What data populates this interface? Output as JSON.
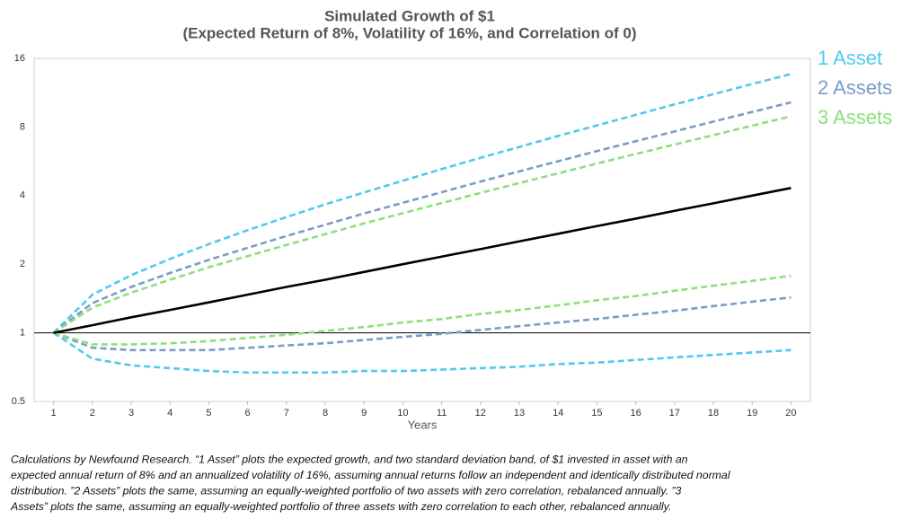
{
  "chart_data": {
    "type": "line",
    "title": [
      "Simulated Growth of $1",
      "(Expected Return of 8%, Volatility of 16%, and Correlation of 0)"
    ],
    "x_label": "Years",
    "x": [
      1,
      2,
      3,
      4,
      5,
      6,
      7,
      8,
      9,
      10,
      11,
      12,
      13,
      14,
      15,
      16,
      17,
      18,
      19,
      20
    ],
    "xlim": [
      0.5,
      20.5
    ],
    "ylim": [
      0.5,
      16
    ],
    "yticks": [
      0.5,
      1,
      2,
      4,
      8,
      16
    ],
    "log_scale": true,
    "grid": false,
    "reference_line": 1,
    "legend_position": "right",
    "median": {
      "color": "#000000",
      "values": [
        1,
        1.08,
        1.17,
        1.26,
        1.36,
        1.47,
        1.59,
        1.71,
        1.85,
        2.0,
        2.16,
        2.33,
        2.52,
        2.72,
        2.94,
        3.17,
        3.43,
        3.7,
        4.0,
        4.32
      ]
    },
    "series": [
      {
        "name": "1 Asset",
        "color": "#4fc9f0",
        "upper": [
          1,
          1.47,
          1.79,
          2.11,
          2.45,
          2.82,
          3.22,
          3.66,
          4.13,
          4.65,
          5.23,
          5.86,
          6.54,
          7.31,
          8.13,
          9.04,
          10.05,
          11.14,
          12.35,
          13.66
        ],
        "lower": [
          1,
          0.77,
          0.72,
          0.7,
          0.68,
          0.67,
          0.67,
          0.67,
          0.68,
          0.68,
          0.69,
          0.7,
          0.71,
          0.73,
          0.74,
          0.76,
          0.78,
          0.8,
          0.82,
          0.84
        ]
      },
      {
        "name": "2 Assets",
        "color": "#7b9cc4",
        "upper": [
          1,
          1.35,
          1.59,
          1.83,
          2.09,
          2.36,
          2.66,
          2.98,
          3.34,
          3.72,
          4.14,
          4.61,
          5.11,
          5.66,
          6.27,
          6.93,
          7.65,
          8.45,
          9.31,
          10.26
        ],
        "lower": [
          1,
          0.86,
          0.84,
          0.84,
          0.84,
          0.86,
          0.88,
          0.9,
          0.93,
          0.96,
          0.99,
          1.03,
          1.07,
          1.11,
          1.15,
          1.2,
          1.25,
          1.31,
          1.37,
          1.43
        ]
      },
      {
        "name": "3 Assets",
        "color": "#8de07a",
        "upper": [
          1,
          1.29,
          1.5,
          1.71,
          1.94,
          2.17,
          2.43,
          2.71,
          3.02,
          3.35,
          3.71,
          4.11,
          4.54,
          5.01,
          5.53,
          6.09,
          6.7,
          7.37,
          8.11,
          8.91
        ],
        "lower": [
          1,
          0.89,
          0.89,
          0.9,
          0.92,
          0.95,
          0.98,
          1.02,
          1.06,
          1.11,
          1.15,
          1.21,
          1.26,
          1.32,
          1.39,
          1.45,
          1.53,
          1.61,
          1.69,
          1.78
        ]
      }
    ],
    "caption_lines": [
      "Calculations by Newfound Research.  “1 Asset” plots the expected growth, and two standard deviation band, of $1 invested in asset with an",
      "expected annual return of 8% and an annualized volatility of 16%, assuming annual returns follow an independent and identically distributed normal",
      "distribution.  ”2 Assets” plots the same, assuming an equally-weighted portfolio of two assets with zero correlation, rebalanced annually.  ”3",
      "Assets” plots the same, assuming an equally-weighted portfolio of three assets with zero correlation to each other, rebalanced annually."
    ]
  }
}
